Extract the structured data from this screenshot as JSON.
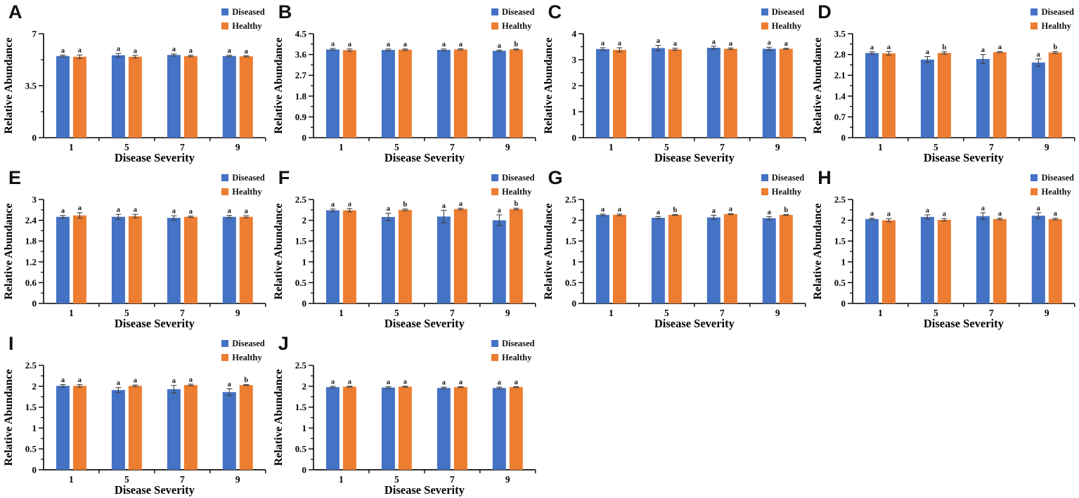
{
  "figure": {
    "colors": {
      "diseased": "#4472C4",
      "healthy": "#ED7D31",
      "axis": "#000000",
      "error_bar": "#3f3f3f",
      "text": "#000000",
      "background": "#ffffff"
    },
    "legend": {
      "diseased_label": "Diseased",
      "healthy_label": "Healthy",
      "position": "top-right"
    }
  },
  "chart_data": [
    {
      "panel": "A",
      "type": "bar",
      "xlabel": "Disease Severity",
      "ylabel": "Relative Abundance",
      "ylim": [
        0,
        7
      ],
      "yticks": [
        0,
        3.5,
        7
      ],
      "categories": [
        "1",
        "5",
        "7",
        "9"
      ],
      "grid": false,
      "legend_position": "top-right",
      "series": [
        {
          "name": "Diseased",
          "color": "#4472C4",
          "values": [
            5.5,
            5.55,
            5.57,
            5.5
          ],
          "errors": [
            0.06,
            0.12,
            0.07,
            0.05
          ],
          "sig_letters": [
            "a",
            "a",
            "a",
            "a"
          ]
        },
        {
          "name": "Healthy",
          "color": "#ED7D31",
          "values": [
            5.45,
            5.45,
            5.5,
            5.48
          ],
          "errors": [
            0.12,
            0.09,
            0.05,
            0.04
          ],
          "sig_letters": [
            "a",
            "a",
            "a",
            "a"
          ]
        }
      ]
    },
    {
      "panel": "B",
      "type": "bar",
      "xlabel": "Disease Severity",
      "ylabel": "Relative Abundance",
      "ylim": [
        0,
        4.5
      ],
      "yticks": [
        0,
        0.9,
        1.8,
        2.7,
        3.6,
        4.5
      ],
      "categories": [
        "1",
        "5",
        "7",
        "9"
      ],
      "grid": false,
      "legend_position": "top-right",
      "series": [
        {
          "name": "Diseased",
          "color": "#4472C4",
          "values": [
            3.82,
            3.8,
            3.8,
            3.76
          ],
          "errors": [
            0.04,
            0.04,
            0.04,
            0.03
          ],
          "sig_letters": [
            "a",
            "a",
            "a",
            "a"
          ]
        },
        {
          "name": "Healthy",
          "color": "#ED7D31",
          "values": [
            3.79,
            3.81,
            3.82,
            3.82
          ],
          "errors": [
            0.05,
            0.03,
            0.03,
            0.02
          ],
          "sig_letters": [
            "a",
            "a",
            "a",
            "b"
          ]
        }
      ]
    },
    {
      "panel": "C",
      "type": "bar",
      "xlabel": "Disease Severity",
      "ylabel": "Relative Abundance",
      "ylim": [
        0,
        4
      ],
      "yticks": [
        0,
        1,
        2,
        3,
        4
      ],
      "categories": [
        "1",
        "5",
        "7",
        "9"
      ],
      "grid": false,
      "legend_position": "top-right",
      "series": [
        {
          "name": "Diseased",
          "color": "#4472C4",
          "values": [
            3.41,
            3.45,
            3.46,
            3.42
          ],
          "errors": [
            0.05,
            0.1,
            0.06,
            0.06
          ],
          "sig_letters": [
            "a",
            "a",
            "a",
            "a"
          ]
        },
        {
          "name": "Healthy",
          "color": "#ED7D31",
          "values": [
            3.38,
            3.4,
            3.42,
            3.42
          ],
          "errors": [
            0.08,
            0.04,
            0.03,
            0.02
          ],
          "sig_letters": [
            "a",
            "a",
            "a",
            "a"
          ]
        }
      ]
    },
    {
      "panel": "D",
      "type": "bar",
      "xlabel": "Disease Severity",
      "ylabel": "Relative Abundance",
      "ylim": [
        0,
        3.5
      ],
      "yticks": [
        0,
        0.7,
        1.4,
        2.1,
        2.8,
        3.5
      ],
      "categories": [
        "1",
        "5",
        "7",
        "9"
      ],
      "grid": false,
      "legend_position": "top-right",
      "series": [
        {
          "name": "Diseased",
          "color": "#4472C4",
          "values": [
            2.85,
            2.63,
            2.65,
            2.53
          ],
          "errors": [
            0.04,
            0.1,
            0.15,
            0.12
          ],
          "sig_letters": [
            "a",
            "a",
            "a",
            "a"
          ]
        },
        {
          "name": "Healthy",
          "color": "#ED7D31",
          "values": [
            2.84,
            2.85,
            2.88,
            2.87
          ],
          "errors": [
            0.06,
            0.04,
            0.02,
            0.03
          ],
          "sig_letters": [
            "a",
            "b",
            "a",
            "b"
          ]
        }
      ]
    },
    {
      "panel": "E",
      "type": "bar",
      "xlabel": "Disease Severity",
      "ylabel": "Relative Abundance",
      "ylim": [
        0,
        3
      ],
      "yticks": [
        0,
        0.6,
        1.2,
        1.8,
        2.4,
        3
      ],
      "categories": [
        "1",
        "5",
        "7",
        "9"
      ],
      "grid": false,
      "legend_position": "top-right",
      "series": [
        {
          "name": "Diseased",
          "color": "#4472C4",
          "values": [
            2.5,
            2.5,
            2.47,
            2.5
          ],
          "errors": [
            0.04,
            0.07,
            0.06,
            0.04
          ],
          "sig_letters": [
            "a",
            "a",
            "a",
            "a"
          ]
        },
        {
          "name": "Healthy",
          "color": "#ED7D31",
          "values": [
            2.54,
            2.52,
            2.5,
            2.5
          ],
          "errors": [
            0.08,
            0.05,
            0.02,
            0.03
          ],
          "sig_letters": [
            "a",
            "a",
            "a",
            "a"
          ]
        }
      ]
    },
    {
      "panel": "F",
      "type": "bar",
      "xlabel": "Disease Severity",
      "ylabel": "Relative Abundance",
      "ylim": [
        0,
        2.5
      ],
      "yticks": [
        0,
        0.5,
        1,
        1.5,
        2,
        2.5
      ],
      "categories": [
        "1",
        "5",
        "7",
        "9"
      ],
      "grid": false,
      "legend_position": "top-right",
      "series": [
        {
          "name": "Diseased",
          "color": "#4472C4",
          "values": [
            2.24,
            2.08,
            2.09,
            2.0
          ],
          "errors": [
            0.03,
            0.09,
            0.15,
            0.13
          ],
          "sig_letters": [
            "a",
            "a",
            "a",
            "a"
          ]
        },
        {
          "name": "Healthy",
          "color": "#ED7D31",
          "values": [
            2.24,
            2.25,
            2.27,
            2.27
          ],
          "errors": [
            0.04,
            0.02,
            0.02,
            0.02
          ],
          "sig_letters": [
            "a",
            "b",
            "a",
            "b"
          ]
        }
      ]
    },
    {
      "panel": "G",
      "type": "bar",
      "xlabel": "Disease Severity",
      "ylabel": "Relative Abundance",
      "ylim": [
        0,
        2.5
      ],
      "yticks": [
        0,
        0.5,
        1,
        1.5,
        2,
        2.5
      ],
      "categories": [
        "1",
        "5",
        "7",
        "9"
      ],
      "grid": false,
      "legend_position": "top-right",
      "series": [
        {
          "name": "Diseased",
          "color": "#4472C4",
          "values": [
            2.13,
            2.06,
            2.07,
            2.05
          ],
          "errors": [
            0.02,
            0.03,
            0.05,
            0.04
          ],
          "sig_letters": [
            "a",
            "a",
            "a",
            "a"
          ]
        },
        {
          "name": "Healthy",
          "color": "#ED7D31",
          "values": [
            2.13,
            2.13,
            2.15,
            2.13
          ],
          "errors": [
            0.02,
            0.01,
            0.01,
            0.01
          ],
          "sig_letters": [
            "a",
            "b",
            "a",
            "b"
          ]
        }
      ]
    },
    {
      "panel": "H",
      "type": "bar",
      "xlabel": "Disease Severity",
      "ylabel": "Relative Abundance",
      "ylim": [
        0,
        2.5
      ],
      "yticks": [
        0,
        0.5,
        1,
        1.5,
        2,
        2.5
      ],
      "categories": [
        "1",
        "5",
        "7",
        "9"
      ],
      "grid": false,
      "legend_position": "top-right",
      "series": [
        {
          "name": "Diseased",
          "color": "#4472C4",
          "values": [
            2.03,
            2.08,
            2.1,
            2.11
          ],
          "errors": [
            0.02,
            0.05,
            0.08,
            0.07
          ],
          "sig_letters": [
            "a",
            "a",
            "a",
            "a"
          ]
        },
        {
          "name": "Healthy",
          "color": "#ED7D31",
          "values": [
            2.0,
            2.01,
            2.03,
            2.03
          ],
          "errors": [
            0.04,
            0.03,
            0.02,
            0.02
          ],
          "sig_letters": [
            "a",
            "a",
            "a",
            "a"
          ]
        }
      ]
    },
    {
      "panel": "I",
      "type": "bar",
      "xlabel": "Disease Severity",
      "ylabel": "Relative Abundance",
      "ylim": [
        0,
        2.5
      ],
      "yticks": [
        0,
        0.5,
        1,
        1.5,
        2,
        2.5
      ],
      "categories": [
        "1",
        "5",
        "7",
        "9"
      ],
      "grid": false,
      "legend_position": "top-right",
      "series": [
        {
          "name": "Diseased",
          "color": "#4472C4",
          "values": [
            2.01,
            1.91,
            1.93,
            1.86
          ],
          "errors": [
            0.03,
            0.06,
            0.09,
            0.08
          ],
          "sig_letters": [
            "a",
            "a",
            "a",
            "a"
          ]
        },
        {
          "name": "Healthy",
          "color": "#ED7D31",
          "values": [
            2.01,
            2.01,
            2.03,
            2.03
          ],
          "errors": [
            0.03,
            0.02,
            0.02,
            0.01
          ],
          "sig_letters": [
            "a",
            "a",
            "a",
            "b"
          ]
        }
      ]
    },
    {
      "panel": "J",
      "type": "bar",
      "xlabel": "Disease Severity",
      "ylabel": "Relative Abundance",
      "ylim": [
        0,
        2.5
      ],
      "yticks": [
        0,
        0.5,
        1,
        1.5,
        2,
        2.5
      ],
      "categories": [
        "1",
        "5",
        "7",
        "9"
      ],
      "grid": false,
      "legend_position": "top-right",
      "series": [
        {
          "name": "Diseased",
          "color": "#4472C4",
          "values": [
            1.98,
            1.97,
            1.96,
            1.96
          ],
          "errors": [
            0.02,
            0.02,
            0.02,
            0.02
          ],
          "sig_letters": [
            "a",
            "a",
            "a",
            "a"
          ]
        },
        {
          "name": "Healthy",
          "color": "#ED7D31",
          "values": [
            1.99,
            1.99,
            1.98,
            1.98
          ],
          "errors": [
            0.01,
            0.01,
            0.01,
            0.01
          ],
          "sig_letters": [
            "a",
            "a",
            "a",
            "a"
          ]
        }
      ]
    }
  ]
}
